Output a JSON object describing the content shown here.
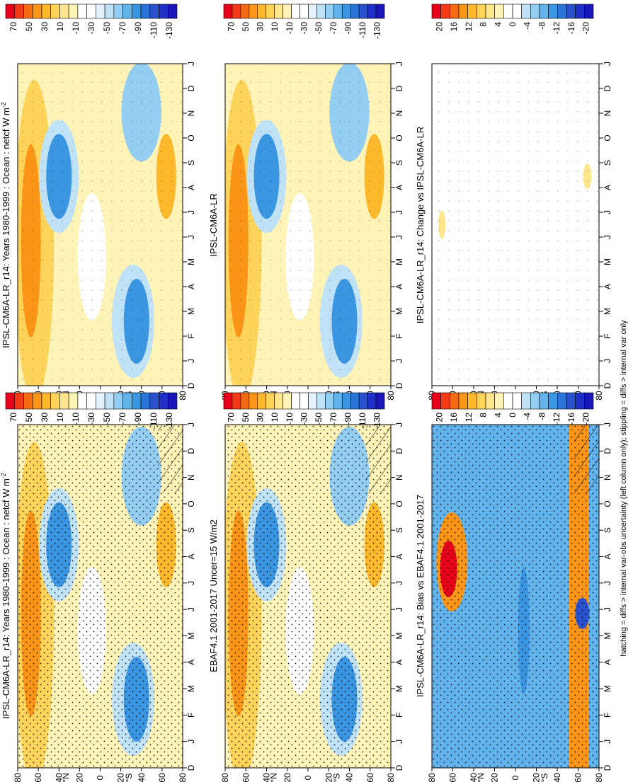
{
  "footnote": "hatching = diffs > internal var-obs uncertainty (left column only); stippling = diffs > internal var only",
  "shared_axes": {
    "month_ticks": [
      "D",
      "J",
      "F",
      "M",
      "A",
      "M",
      "J",
      "J",
      "A",
      "S",
      "O",
      "N",
      "D",
      "J"
    ],
    "lat_ticks": [
      "80",
      "60",
      "40",
      "20",
      "0",
      "20",
      "40",
      "60",
      "80"
    ],
    "lat_hemisphere_labels": [
      "°N",
      "°S"
    ]
  },
  "chart_data": [
    {
      "type": "heatmap",
      "title": "IPSL-CM6A-LR_r14: Years 1980-1999 : Ocean : netcf W m",
      "title_superscript": "-2",
      "xlabel": "",
      "ylabel": "",
      "x": [
        "D",
        "J",
        "F",
        "M",
        "A",
        "M",
        "J",
        "J",
        "A",
        "S",
        "O",
        "N",
        "D",
        "J"
      ],
      "y": [
        "80°N",
        "60°N",
        "40°N",
        "20°N",
        "0",
        "20°S",
        "40°S",
        "60°S",
        "80°S"
      ],
      "colorbar": {
        "labels": [
          "70",
          "50",
          "30",
          "10",
          "-10",
          "-30",
          "-50",
          "-70",
          "-90",
          "-110",
          "-130"
        ],
        "range": [
          -140,
          80
        ]
      },
      "overlay": "stippling and hatching"
    },
    {
      "type": "heatmap",
      "title": "IPSL-CM6A-LR_r14: Years 1980-1999 : Ocean : netcf W m",
      "title_superscript": "-2",
      "xlabel": "",
      "ylabel": "",
      "x": [
        "D",
        "J",
        "F",
        "M",
        "A",
        "M",
        "J",
        "J",
        "A",
        "S",
        "O",
        "N",
        "D",
        "J"
      ],
      "y": [
        "80°N",
        "60°N",
        "40°N",
        "20°N",
        "0",
        "20°S",
        "40°S",
        "60°S",
        "80°S"
      ],
      "colorbar": {
        "labels": [
          "70",
          "50",
          "30",
          "10",
          "-10",
          "-30",
          "-50",
          "-70",
          "-90",
          "-110",
          "-130"
        ],
        "range": [
          -140,
          80
        ]
      },
      "overlay": "stippling"
    },
    {
      "type": "heatmap",
      "title": "EBAF4.1 2001-2017 Uncer=15 W/m2",
      "xlabel": "",
      "ylabel": "",
      "x": [
        "D",
        "J",
        "F",
        "M",
        "A",
        "M",
        "J",
        "J",
        "A",
        "S",
        "O",
        "N",
        "D",
        "J"
      ],
      "y": [
        "80°N",
        "60°N",
        "40°N",
        "20°N",
        "0",
        "20°S",
        "40°S",
        "60°S",
        "80°S"
      ],
      "colorbar": {
        "labels": [
          "70",
          "50",
          "30",
          "10",
          "-10",
          "-30",
          "-50",
          "-70",
          "-90",
          "-110",
          "-130"
        ],
        "range": [
          -140,
          80
        ]
      },
      "overlay": "stippling and hatching"
    },
    {
      "type": "heatmap",
      "title": "IPSL-CM6A-LR",
      "xlabel": "",
      "ylabel": "",
      "x": [
        "D",
        "J",
        "F",
        "M",
        "A",
        "M",
        "J",
        "J",
        "A",
        "S",
        "O",
        "N",
        "D",
        "J"
      ],
      "y": [
        "80°N",
        "60°N",
        "40°N",
        "20°N",
        "0",
        "20°S",
        "40°S",
        "60°S",
        "80°S"
      ],
      "colorbar": {
        "labels": [
          "70",
          "50",
          "30",
          "10",
          "-10",
          "-30",
          "-50",
          "-70",
          "-90",
          "-110",
          "-130"
        ],
        "range": [
          -140,
          80
        ]
      },
      "overlay": "stippling"
    },
    {
      "type": "heatmap",
      "title": "IPSL-CM6A-LR_r14: Bias vs EBAF4.1 2001-2017",
      "xlabel": "",
      "ylabel": "",
      "x": [
        "D",
        "J",
        "F",
        "M",
        "A",
        "M",
        "J",
        "J",
        "A",
        "S",
        "O",
        "N",
        "D",
        "J"
      ],
      "y": [
        "80°N",
        "60°N",
        "40°N",
        "20°N",
        "0",
        "20°S",
        "40°S",
        "60°S",
        "80°S"
      ],
      "colorbar": {
        "labels": [
          "20",
          "16",
          "12",
          "8",
          "4",
          "0",
          "-4",
          "-8",
          "-12",
          "-16",
          "-20"
        ],
        "range": [
          -22,
          22
        ]
      },
      "overlay": "stippling and hatching"
    },
    {
      "type": "heatmap",
      "title": "IPSL-CM6A-LR_r14: Change vs IPSL-CM6A-LR",
      "xlabel": "",
      "ylabel": "",
      "x": [
        "D",
        "J",
        "F",
        "M",
        "A",
        "M",
        "J",
        "J",
        "A",
        "S",
        "O",
        "N",
        "D",
        "J"
      ],
      "y": [
        "80°N",
        "60°N",
        "40°N",
        "20°N",
        "0",
        "20°S",
        "40°S",
        "60°S",
        "80°S"
      ],
      "colorbar": {
        "labels": [
          "20",
          "16",
          "12",
          "8",
          "4",
          "0",
          "-4",
          "-8",
          "-12",
          "-16",
          "-20"
        ],
        "range": [
          -22,
          22
        ]
      },
      "overlay": "stippling"
    }
  ],
  "colors": {
    "netcf_scale": [
      "#e8001a",
      "#f23a16",
      "#f76a14",
      "#fb9517",
      "#fdb82b",
      "#fdd35a",
      "#fee68c",
      "#fff3b8",
      "#ffffff",
      "#ffffff",
      "#e4f2fb",
      "#c0e2f7",
      "#93cdf2",
      "#62b3ec",
      "#3b96e2",
      "#2a75d7",
      "#2a52cf",
      "#1f2fc8",
      "#1a16b8"
    ],
    "diff_scale": [
      "#e8001a",
      "#f23a16",
      "#f76a14",
      "#fb9517",
      "#fdb82b",
      "#fdd35a",
      "#fee68c",
      "#fff3b8",
      "#ffffff",
      "#ffffff",
      "#c0e2f7",
      "#93cdf2",
      "#62b3ec",
      "#3b96e2",
      "#2a75d7",
      "#2a52cf",
      "#1f2fc8",
      "#1a16b8"
    ]
  }
}
